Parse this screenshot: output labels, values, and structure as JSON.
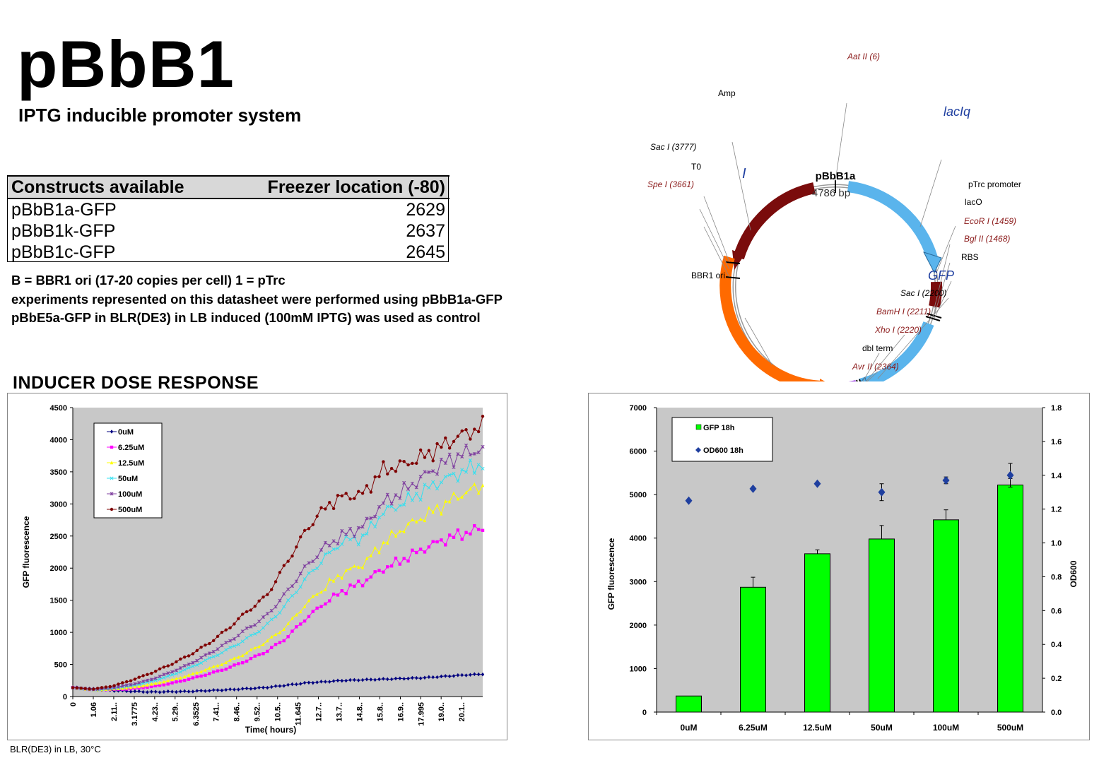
{
  "header": {
    "title": "pBbB1",
    "subtitle": "IPTG inducible promoter system"
  },
  "constructs_table": {
    "headers": [
      "Constructs available",
      "Freezer location (-80)"
    ],
    "rows": [
      {
        "name": "pBbB1a-GFP",
        "location": "2629"
      },
      {
        "name": "pBbB1k-GFP",
        "location": "2637"
      },
      {
        "name": "pBbB1c-GFP",
        "location": "2645"
      }
    ]
  },
  "notes": {
    "line1": "B = BBR1 ori (17-20 copies per cell)  1 = pTrc",
    "line2": "experiments represented on this datasheet were performed using pBbB1a-GFP",
    "line3": "pBbE5a-GFP in BLR(DE3) in LB induced (100mM IPTG) was used as control"
  },
  "section_title": "INDUCER DOSE RESPONSE",
  "footer": "BLR(DE3) in LB, 30°C",
  "plasmid_map": {
    "name": "pBbB1a",
    "size": "4786 bp",
    "labels": {
      "aat": "Aat II (6)",
      "amp": "Amp",
      "laciq": "lacIq",
      "sac1": "Sac I (3777)",
      "t0": "T0",
      "spe": "Spe I (3661)",
      "ptrc": "pTrc promoter",
      "laco": "lacO",
      "eco": "EcoR I (1459)",
      "bgl": "Bgl II (1468)",
      "rbs": "RBS",
      "bbr1": "BBR1 ori",
      "gfp": "GFP",
      "sac2": "Sac I (2200)",
      "bam": "BamH I (2211)",
      "xho": "Xho I (2220)",
      "dbl": "dbl term",
      "avr": "Avr II (2364)"
    },
    "colors": {
      "amp": "#7a0c0c",
      "laciq": "#5ab4ec",
      "gfp": "#5ab4ec",
      "bbr1": "#ff6a00",
      "rbs": "#9b3fe0",
      "enzyme": "#8b1a1a",
      "label_blue": "#1f3fa0"
    }
  },
  "chart_data": [
    {
      "type": "line",
      "title": "",
      "xlabel": "Time( hours)",
      "ylabel": "GFP fluorescence",
      "ylim": [
        0,
        4500
      ],
      "yticks": [
        0,
        500,
        1000,
        1500,
        2000,
        2500,
        3000,
        3500,
        4000,
        4500
      ],
      "xlim": [
        0,
        21.2
      ],
      "x_tick_labels": [
        "0",
        "1.06",
        "2.11..",
        "3.1775",
        "4.23..",
        "5.29..",
        "6.3525",
        "7.41..",
        "8.46..",
        "9.52..",
        "10.5..",
        "11.645",
        "12.7..",
        "13.7..",
        "14.8..",
        "15.8..",
        "16.9..",
        "17.995",
        "19.0..",
        "20.1.."
      ],
      "x_tick_values": [
        0,
        1.06,
        2.117,
        3.1775,
        4.235,
        5.29,
        6.3525,
        7.41,
        8.47,
        9.53,
        10.59,
        11.645,
        12.7,
        13.76,
        14.82,
        15.88,
        16.94,
        17.995,
        19.05,
        20.11
      ],
      "legend": "top-left",
      "grid": false,
      "background": "#c8c8c8",
      "series": [
        {
          "name": "0uM",
          "color": "#00007f",
          "marker": "diamond",
          "points": [
            [
              0,
              140
            ],
            [
              2,
              95
            ],
            [
              4,
              70
            ],
            [
              6,
              80
            ],
            [
              8,
              105
            ],
            [
              10,
              140
            ],
            [
              12,
              210
            ],
            [
              14,
              250
            ],
            [
              16,
              270
            ],
            [
              18,
              290
            ],
            [
              20,
              330
            ],
            [
              21.2,
              350
            ]
          ]
        },
        {
          "name": "6.25uM",
          "color": "#ff00ff",
          "marker": "square",
          "points": [
            [
              0,
              140
            ],
            [
              1,
              105
            ],
            [
              2,
              110
            ],
            [
              3,
              120
            ],
            [
              4,
              150
            ],
            [
              5,
              200
            ],
            [
              6,
              270
            ],
            [
              7,
              350
            ],
            [
              8,
              440
            ],
            [
              9,
              560
            ],
            [
              10,
              700
            ],
            [
              11,
              900
            ],
            [
              12,
              1200
            ],
            [
              13,
              1450
            ],
            [
              14,
              1650
            ],
            [
              15,
              1780
            ],
            [
              16,
              1980
            ],
            [
              17,
              2120
            ],
            [
              18,
              2280
            ],
            [
              19,
              2420
            ],
            [
              20,
              2520
            ],
            [
              21.2,
              2620
            ]
          ]
        },
        {
          "name": "12.5uM",
          "color": "#ffff00",
          "marker": "triangle",
          "points": [
            [
              0,
              140
            ],
            [
              1,
              105
            ],
            [
              2,
              115
            ],
            [
              3,
              140
            ],
            [
              4,
              185
            ],
            [
              5,
              250
            ],
            [
              6,
              330
            ],
            [
              7,
              430
            ],
            [
              8,
              540
            ],
            [
              9,
              680
            ],
            [
              10,
              850
            ],
            [
              11,
              1080
            ],
            [
              12,
              1420
            ],
            [
              13,
              1700
            ],
            [
              14,
              1930
            ],
            [
              15,
              2060
            ],
            [
              16,
              2370
            ],
            [
              17,
              2600
            ],
            [
              18,
              2780
            ],
            [
              19,
              2950
            ],
            [
              20,
              3140
            ],
            [
              21.2,
              3280
            ]
          ]
        },
        {
          "name": "50uM",
          "color": "#33e0f0",
          "marker": "x",
          "points": [
            [
              0,
              140
            ],
            [
              1,
              105
            ],
            [
              2,
              125
            ],
            [
              3,
              165
            ],
            [
              4,
              230
            ],
            [
              5,
              320
            ],
            [
              6,
              440
            ],
            [
              7,
              580
            ],
            [
              8,
              730
            ],
            [
              9,
              900
            ],
            [
              10,
              1100
            ],
            [
              11,
              1420
            ],
            [
              12,
              1820
            ],
            [
              13,
              2150
            ],
            [
              14,
              2430
            ],
            [
              15,
              2470
            ],
            [
              16,
              2860
            ],
            [
              17,
              3000
            ],
            [
              18,
              3180
            ],
            [
              19,
              3350
            ],
            [
              20,
              3480
            ],
            [
              21.2,
              3630
            ]
          ]
        },
        {
          "name": "100uM",
          "color": "#7f3f9f",
          "marker": "star",
          "points": [
            [
              0,
              140
            ],
            [
              1,
              110
            ],
            [
              2,
              135
            ],
            [
              3,
              185
            ],
            [
              4,
              260
            ],
            [
              5,
              370
            ],
            [
              6,
              500
            ],
            [
              7,
              660
            ],
            [
              8,
              840
            ],
            [
              9,
              1050
            ],
            [
              10,
              1250
            ],
            [
              11,
              1600
            ],
            [
              12,
              2000
            ],
            [
              13,
              2320
            ],
            [
              14,
              2520
            ],
            [
              15,
              2640
            ],
            [
              16,
              3000
            ],
            [
              17,
              3180
            ],
            [
              18,
              3400
            ],
            [
              19,
              3600
            ],
            [
              20,
              3760
            ],
            [
              21.2,
              3860
            ]
          ]
        },
        {
          "name": "500uM",
          "color": "#7f0000",
          "marker": "circle",
          "points": [
            [
              0,
              140
            ],
            [
              1,
              115
            ],
            [
              2,
              160
            ],
            [
              3,
              250
            ],
            [
              4,
              360
            ],
            [
              5,
              490
            ],
            [
              6,
              640
            ],
            [
              7,
              820
            ],
            [
              8,
              1050
            ],
            [
              9,
              1320
            ],
            [
              10,
              1560
            ],
            [
              11,
              2050
            ],
            [
              12,
              2560
            ],
            [
              13,
              2950
            ],
            [
              14,
              3120
            ],
            [
              15,
              3150
            ],
            [
              16,
              3520
            ],
            [
              17,
              3600
            ],
            [
              18,
              3720
            ],
            [
              19,
              3880
            ],
            [
              20,
              4060
            ],
            [
              21.2,
              4200
            ]
          ]
        }
      ]
    },
    {
      "type": "bar",
      "title": "",
      "xlabel": "",
      "ylabel": "GFP fluorescence",
      "y2label": "OD600",
      "categories": [
        "0uM",
        "6.25uM",
        "12.5uM",
        "50uM",
        "100uM",
        "500uM"
      ],
      "ylim": [
        0,
        7000
      ],
      "yticks": [
        0,
        1000,
        2000,
        3000,
        4000,
        5000,
        6000,
        7000
      ],
      "y2lim": [
        0,
        1.8
      ],
      "y2ticks": [
        "0.0",
        "0.2",
        "0.4",
        "0.6",
        "0.8",
        "1.0",
        "1.2",
        "1.4",
        "1.6",
        "1.8"
      ],
      "legend": "top-left",
      "background": "#c8c8c8",
      "series": [
        {
          "name": "GFP 18h",
          "color": "#00ff00",
          "values": [
            370,
            2870,
            3640,
            3980,
            4420,
            5220
          ],
          "errors": [
            0,
            230,
            90,
            310,
            230,
            150
          ]
        },
        {
          "name": "OD600 18h",
          "color": "#1f3f9f",
          "axis": "right",
          "values": [
            1.25,
            1.32,
            1.35,
            1.3,
            1.37,
            1.4
          ],
          "errors": [
            0,
            0,
            0,
            0.05,
            0.02,
            0.07
          ]
        }
      ]
    }
  ]
}
